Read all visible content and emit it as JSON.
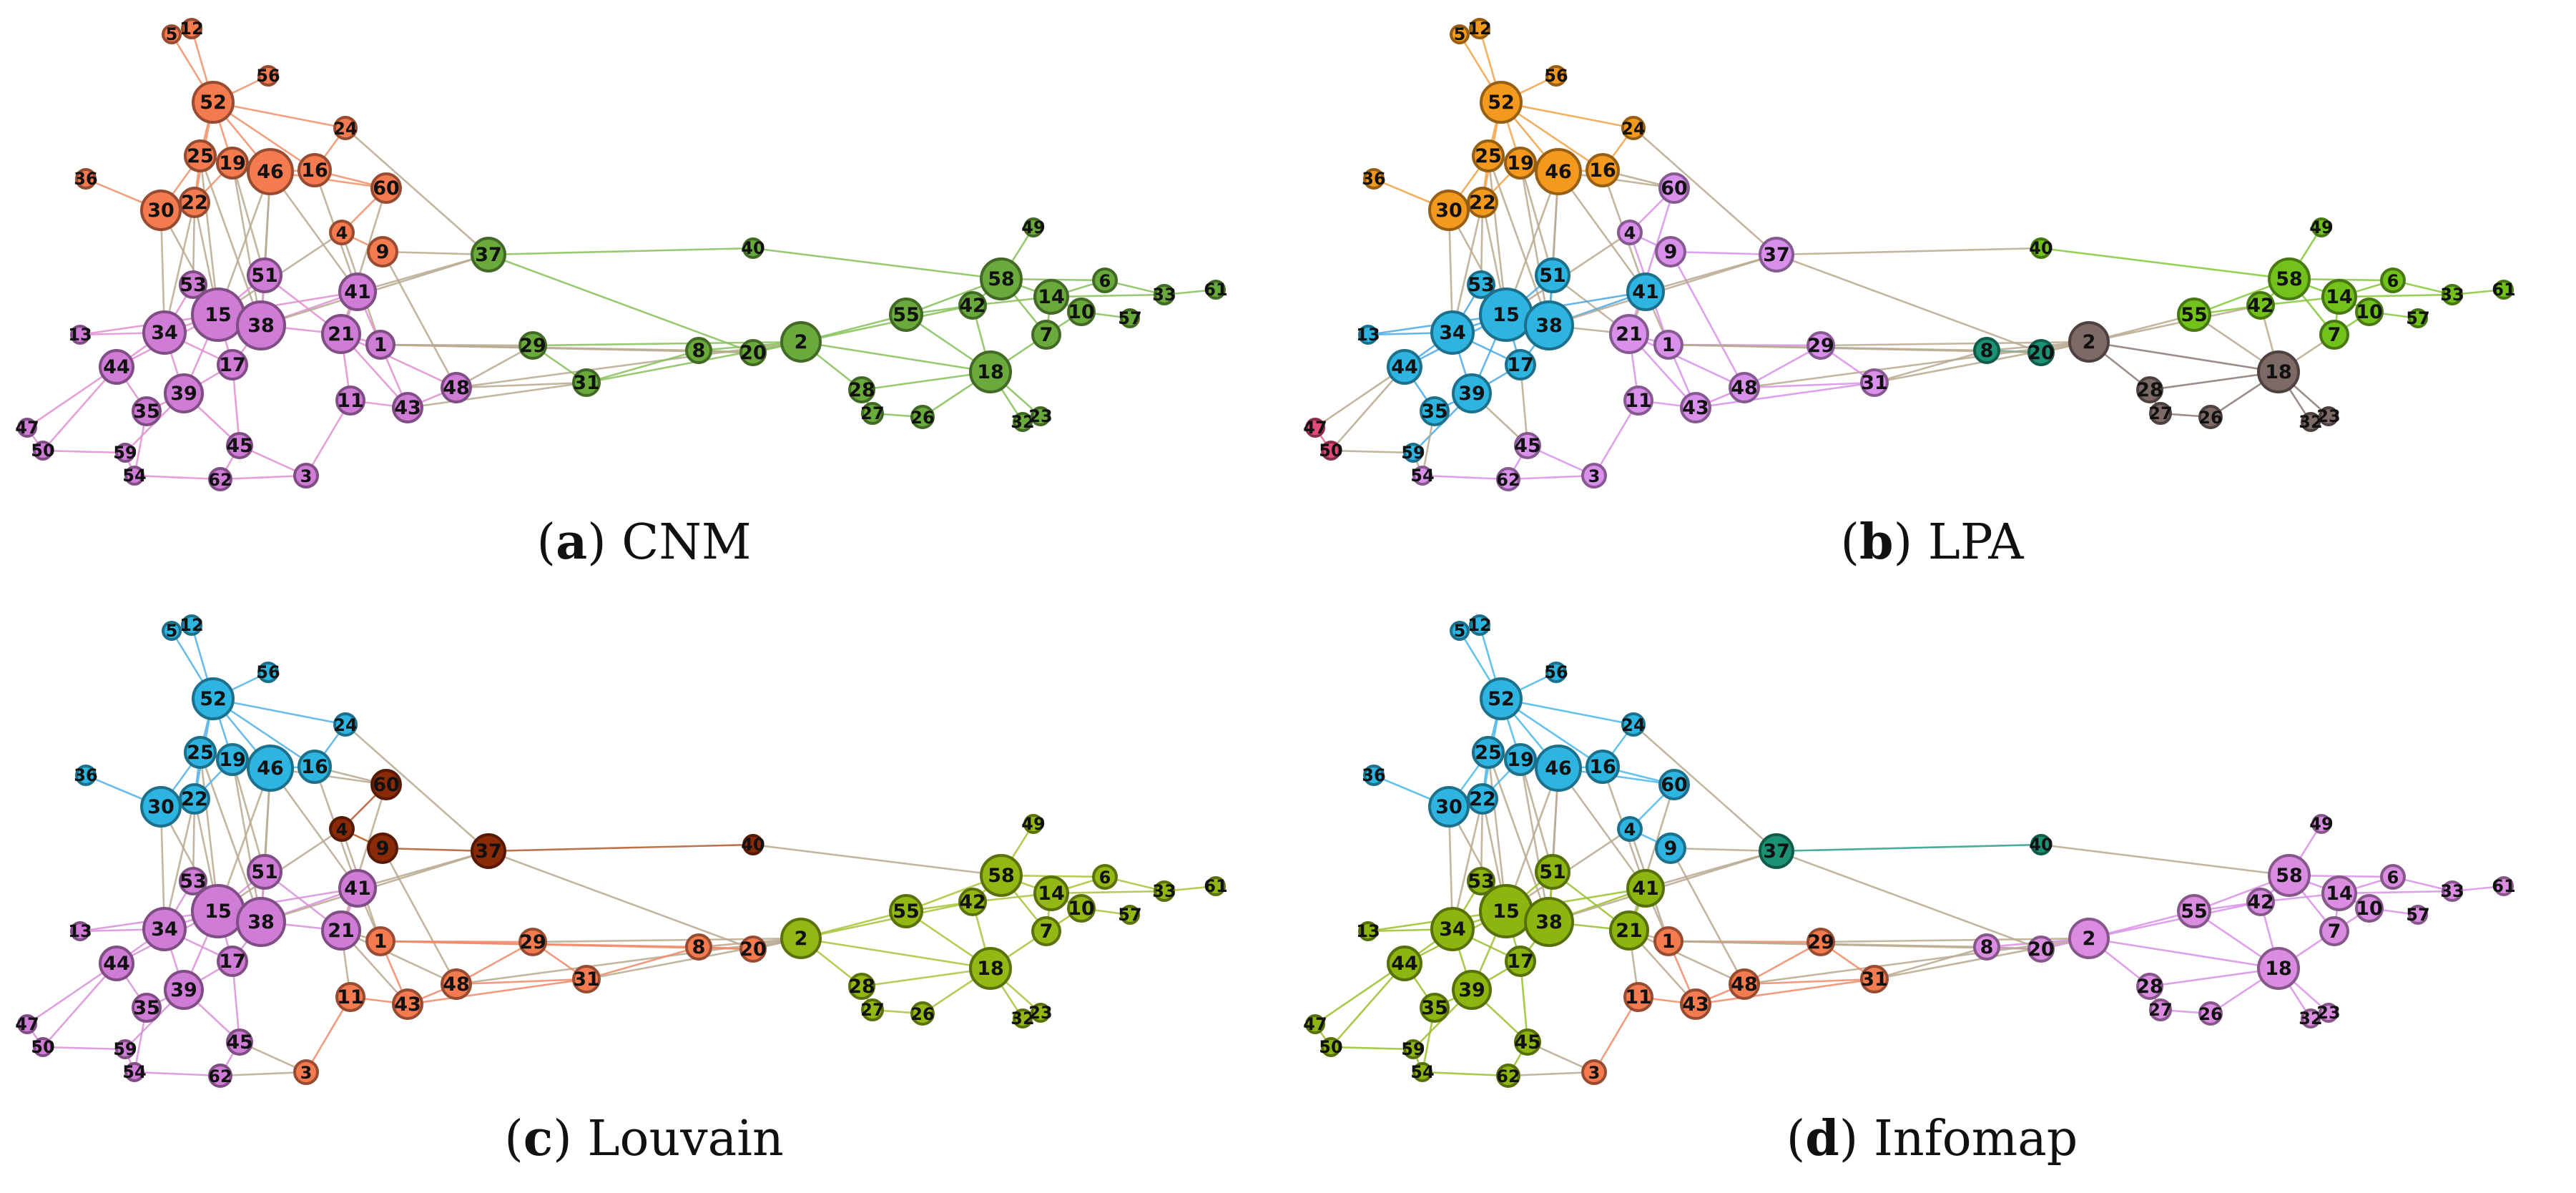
{
  "figure": {
    "panels": [
      {
        "letter": "a",
        "title": "CNM",
        "palette": {
          "A": "#f47a50",
          "B": "#cf7cd6",
          "C": "#6aaa3c"
        },
        "edge_colors": {
          "A": "#f0906a",
          "B": "#df8fd0",
          "C": "#86c05a"
        },
        "assign": {
          "A": [
            "5",
            "12",
            "52",
            "56",
            "24",
            "36",
            "30",
            "25",
            "19",
            "46",
            "16",
            "22",
            "60",
            "4",
            "9"
          ],
          "B": [
            "53",
            "51",
            "15",
            "38",
            "41",
            "13",
            "34",
            "21",
            "1",
            "17",
            "44",
            "39",
            "11",
            "43",
            "48",
            "35",
            "47",
            "50",
            "59",
            "45",
            "54",
            "62",
            "3"
          ],
          "C": [
            "37",
            "40",
            "49",
            "58",
            "6",
            "14",
            "10",
            "57",
            "33",
            "61",
            "42",
            "7",
            "55",
            "29",
            "8",
            "20",
            "2",
            "31",
            "28",
            "18",
            "27",
            "26",
            "32",
            "23"
          ]
        }
      },
      {
        "letter": "b",
        "title": "LPA",
        "palette": {
          "A": "#f39a1e",
          "B": "#2eb4e0",
          "C": "#d990ea",
          "D": "#72c21b",
          "E": "#7d6a67",
          "F": "#1c9275",
          "G": "#e04a78"
        },
        "edge_colors": {
          "A": "#f0a347",
          "B": "#4aa8e6",
          "C": "#d890e8",
          "D": "#84c83a",
          "E": "#8a7a76",
          "F": "#2aa38a",
          "G": "#e06a90"
        },
        "assign": {
          "A": [
            "5",
            "12",
            "52",
            "56",
            "24",
            "36",
            "30",
            "25",
            "19",
            "46",
            "16",
            "22"
          ],
          "B": [
            "53",
            "51",
            "15",
            "38",
            "41",
            "13",
            "34",
            "17",
            "44",
            "39",
            "35",
            "59"
          ],
          "C": [
            "60",
            "4",
            "9",
            "37",
            "21",
            "1",
            "29",
            "11",
            "43",
            "48",
            "31",
            "45",
            "54",
            "62",
            "3"
          ],
          "D": [
            "40",
            "49",
            "58",
            "6",
            "14",
            "10",
            "57",
            "33",
            "61",
            "42",
            "7",
            "55"
          ],
          "E": [
            "2",
            "28",
            "18",
            "27",
            "26",
            "32",
            "23"
          ],
          "F": [
            "8",
            "20"
          ],
          "G": [
            "47",
            "50"
          ]
        }
      },
      {
        "letter": "c",
        "title": "Louvain",
        "palette": {
          "A": "#2eb4e0",
          "B": "#8b2a06",
          "C": "#cf7cd6",
          "D": "#f47a50",
          "E": "#93b814"
        },
        "edge_colors": {
          "A": "#52b0e6",
          "B": "#b05a2a",
          "C": "#d890d8",
          "D": "#f0886a",
          "E": "#a6c43a"
        },
        "assign": {
          "A": [
            "5",
            "12",
            "52",
            "56",
            "24",
            "36",
            "30",
            "25",
            "19",
            "46",
            "16",
            "22"
          ],
          "B": [
            "60",
            "4",
            "9",
            "37",
            "40"
          ],
          "C": [
            "53",
            "51",
            "15",
            "38",
            "41",
            "13",
            "34",
            "21",
            "17",
            "44",
            "39",
            "35",
            "47",
            "50",
            "59",
            "45",
            "54",
            "62"
          ],
          "D": [
            "1",
            "11",
            "43",
            "48",
            "29",
            "31",
            "8",
            "20",
            "3"
          ],
          "E": [
            "49",
            "58",
            "6",
            "14",
            "10",
            "57",
            "33",
            "61",
            "42",
            "7",
            "55",
            "2",
            "28",
            "18",
            "27",
            "26",
            "32",
            "23"
          ]
        }
      },
      {
        "letter": "d",
        "title": "Infomap",
        "palette": {
          "A": "#2eb4e0",
          "B": "#8db50f",
          "C": "#f47a50",
          "D": "#1c9275",
          "E": "#d98ce0"
        },
        "edge_colors": {
          "A": "#4ab8e6",
          "B": "#9ac02a",
          "C": "#f08a66",
          "D": "#2a9f86",
          "E": "#d890e6"
        },
        "assign": {
          "A": [
            "5",
            "12",
            "52",
            "56",
            "24",
            "36",
            "30",
            "25",
            "19",
            "46",
            "16",
            "22",
            "60",
            "4",
            "9"
          ],
          "B": [
            "53",
            "51",
            "15",
            "38",
            "41",
            "13",
            "34",
            "21",
            "17",
            "44",
            "39",
            "35",
            "47",
            "50",
            "59",
            "45",
            "54",
            "62"
          ],
          "C": [
            "1",
            "11",
            "43",
            "48",
            "29",
            "31",
            "3"
          ],
          "D": [
            "37",
            "40"
          ],
          "E": [
            "8",
            "20",
            "2",
            "55",
            "42",
            "58",
            "49",
            "14",
            "6",
            "10",
            "57",
            "33",
            "61",
            "7",
            "28",
            "18",
            "27",
            "26",
            "32",
            "23"
          ]
        }
      }
    ],
    "node_labels": [
      "5",
      "12",
      "52",
      "56",
      "24",
      "36",
      "30",
      "25",
      "19",
      "46",
      "16",
      "22",
      "60",
      "4",
      "9",
      "37",
      "40",
      "49",
      "53",
      "51",
      "15",
      "38",
      "41",
      "58",
      "6",
      "14",
      "10",
      "57",
      "33",
      "61",
      "13",
      "34",
      "21",
      "1",
      "29",
      "8",
      "20",
      "2",
      "55",
      "42",
      "7",
      "44",
      "17",
      "39",
      "11",
      "43",
      "48",
      "31",
      "28",
      "18",
      "35",
      "47",
      "50",
      "59",
      "45",
      "54",
      "62",
      "3",
      "27",
      "26",
      "32",
      "23"
    ]
  }
}
